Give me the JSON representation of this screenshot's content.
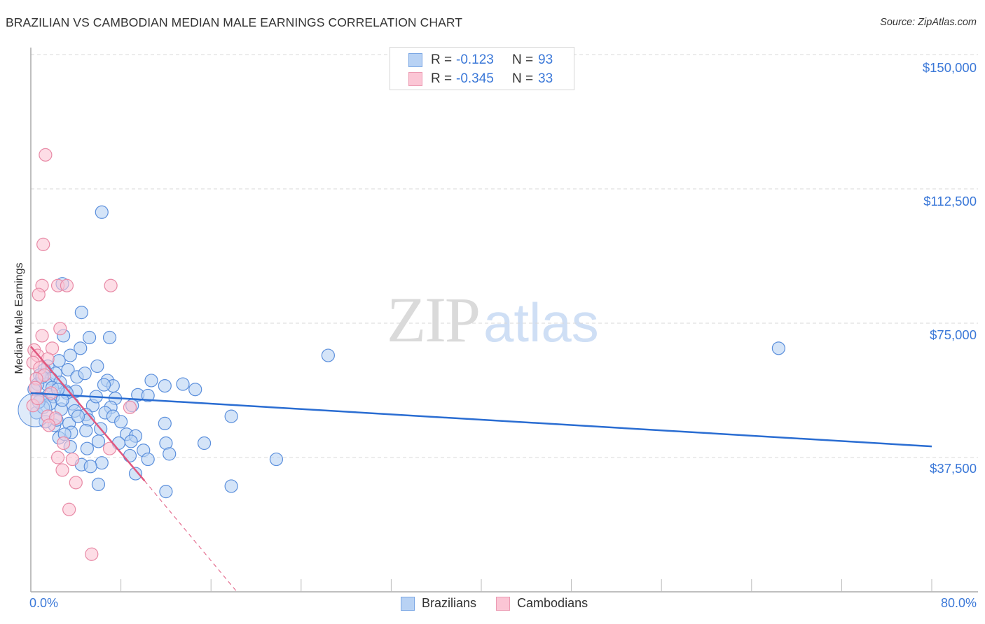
{
  "header": {
    "title": "BRAZILIAN VS CAMBODIAN MEDIAN MALE EARNINGS CORRELATION CHART",
    "source": "Source: ZipAtlas.com"
  },
  "colors": {
    "brazilians_fill": "#b8d2f4",
    "brazilians_stroke": "#5b8fdc",
    "brazilians_line": "#2a6dd2",
    "cambodians_fill": "#fbc6d5",
    "cambodians_stroke": "#e88aa6",
    "cambodians_line": "#e0587f",
    "axis_text": "#3b78d8",
    "grid": "#d9d9d9"
  },
  "legend": {
    "rows": [
      {
        "series": "Brazilians",
        "r_label": "R =",
        "r_value": "-0.123",
        "n_label": "N =",
        "n_value": "93"
      },
      {
        "series": "Cambodians",
        "r_label": "R =",
        "r_value": "-0.345",
        "n_label": "N =",
        "n_value": "33"
      }
    ]
  },
  "bottom_legend": {
    "items": [
      {
        "label": "Brazilians"
      },
      {
        "label": "Cambodians"
      }
    ]
  },
  "axes": {
    "ylabel": "Median Male Earnings",
    "yticks": [
      "$150,000",
      "$112,500",
      "$75,000",
      "$37,500"
    ],
    "xtick_left": "0.0%",
    "xtick_right": "80.0%"
  },
  "watermark": {
    "zip": "ZIP",
    "atlas": "atlas"
  },
  "chart_data": {
    "type": "scatter",
    "title": "BRAZILIAN VS CAMBODIAN MEDIAN MALE EARNINGS CORRELATION CHART",
    "xlabel": "",
    "ylabel": "Median Male Earnings",
    "xlim": [
      0,
      80
    ],
    "ylim": [
      0,
      155000
    ],
    "x_unit": "%",
    "yticks": [
      37500,
      75000,
      112500,
      150000
    ],
    "xtick_labels": [
      "0.0%",
      "80.0%"
    ],
    "grid": "horizontal dashed",
    "legend_position": "top-center and bottom-center",
    "series": [
      {
        "name": "Brazilians",
        "r": -0.123,
        "n": 93,
        "trend": {
          "x": [
            0,
            80
          ],
          "y": [
            55500,
            40600
          ]
        },
        "points": [
          [
            6.3,
            106000
          ],
          [
            2.8,
            86000
          ],
          [
            4.5,
            78000
          ],
          [
            5.2,
            71000
          ],
          [
            7.0,
            71000
          ],
          [
            4.4,
            68000
          ],
          [
            2.9,
            71500
          ],
          [
            2.5,
            64500
          ],
          [
            3.5,
            66000
          ],
          [
            5.9,
            63000
          ],
          [
            1.5,
            63000
          ],
          [
            1.2,
            62000
          ],
          [
            2.2,
            61000
          ],
          [
            3.3,
            62000
          ],
          [
            4.1,
            60000
          ],
          [
            4.8,
            61000
          ],
          [
            1.8,
            59500
          ],
          [
            0.8,
            60500
          ],
          [
            1.4,
            58000
          ],
          [
            2.6,
            58500
          ],
          [
            3.1,
            56000
          ],
          [
            1.9,
            57000
          ],
          [
            0.6,
            58000
          ],
          [
            6.8,
            59000
          ],
          [
            7.3,
            57500
          ],
          [
            6.5,
            57800
          ],
          [
            10.7,
            59000
          ],
          [
            11.9,
            57500
          ],
          [
            13.5,
            58000
          ],
          [
            14.6,
            56500
          ],
          [
            9.5,
            55000
          ],
          [
            10.4,
            54800
          ],
          [
            4.0,
            56000
          ],
          [
            3.2,
            55500
          ],
          [
            2.0,
            54500
          ],
          [
            1.6,
            55000
          ],
          [
            0.9,
            54000
          ],
          [
            7.5,
            54000
          ],
          [
            5.5,
            52000
          ],
          [
            7.1,
            51500
          ],
          [
            3.7,
            52500
          ],
          [
            2.7,
            51000
          ],
          [
            4.9,
            49500
          ],
          [
            6.6,
            50000
          ],
          [
            7.3,
            49000
          ],
          [
            5.1,
            48000
          ],
          [
            3.4,
            47000
          ],
          [
            2.1,
            46500
          ],
          [
            11.9,
            47000
          ],
          [
            17.8,
            49000
          ],
          [
            4.9,
            45000
          ],
          [
            3.6,
            44500
          ],
          [
            8.5,
            44000
          ],
          [
            9.3,
            43500
          ],
          [
            2.5,
            43000
          ],
          [
            6.0,
            42000
          ],
          [
            7.8,
            41500
          ],
          [
            12.0,
            41500
          ],
          [
            15.4,
            41500
          ],
          [
            8.9,
            42000
          ],
          [
            3.5,
            40500
          ],
          [
            5.0,
            40000
          ],
          [
            10.0,
            39500
          ],
          [
            12.3,
            38500
          ],
          [
            8.8,
            38000
          ],
          [
            10.4,
            37000
          ],
          [
            6.3,
            36000
          ],
          [
            4.5,
            35500
          ],
          [
            5.3,
            35000
          ],
          [
            9.3,
            33000
          ],
          [
            6.0,
            30000
          ],
          [
            12.0,
            28000
          ],
          [
            17.8,
            29500
          ],
          [
            21.8,
            37000
          ],
          [
            26.4,
            66000
          ],
          [
            66.4,
            68000
          ],
          [
            1.0,
            60000
          ],
          [
            0.5,
            50000
          ],
          [
            1.7,
            52500
          ],
          [
            2.3,
            48000
          ],
          [
            3.9,
            50500
          ],
          [
            6.2,
            45500
          ],
          [
            8.0,
            47500
          ],
          [
            9.0,
            52000
          ],
          [
            0.3,
            56500
          ],
          [
            1.1,
            51500
          ],
          [
            2.8,
            53500
          ],
          [
            4.2,
            49000
          ],
          [
            5.8,
            54500
          ],
          [
            1.3,
            47500
          ],
          [
            0.7,
            53000
          ],
          [
            2.4,
            56500
          ],
          [
            3.0,
            44000
          ]
        ]
      },
      {
        "name": "Cambodians",
        "r": -0.345,
        "n": 33,
        "trend_solid": {
          "x": [
            0,
            10.1
          ],
          "y": [
            68500,
            31000
          ]
        },
        "trend_dashed": {
          "x": [
            10.1,
            18.3
          ],
          "y": [
            31000,
            0
          ]
        },
        "points": [
          [
            1.3,
            122000
          ],
          [
            1.1,
            97000
          ],
          [
            1.0,
            85500
          ],
          [
            0.7,
            83000
          ],
          [
            2.4,
            85500
          ],
          [
            3.2,
            85500
          ],
          [
            7.1,
            85500
          ],
          [
            2.6,
            73500
          ],
          [
            1.0,
            71500
          ],
          [
            1.9,
            68000
          ],
          [
            0.3,
            67500
          ],
          [
            0.6,
            66000
          ],
          [
            1.5,
            65000
          ],
          [
            0.2,
            64000
          ],
          [
            0.8,
            62500
          ],
          [
            1.2,
            60500
          ],
          [
            0.5,
            59500
          ],
          [
            0.4,
            57000
          ],
          [
            1.8,
            55500
          ],
          [
            0.2,
            52000
          ],
          [
            8.8,
            51500
          ],
          [
            1.5,
            49000
          ],
          [
            2.2,
            48500
          ],
          [
            1.6,
            46500
          ],
          [
            7.0,
            40000
          ],
          [
            2.9,
            41500
          ],
          [
            3.7,
            37000
          ],
          [
            2.4,
            37500
          ],
          [
            2.8,
            34000
          ],
          [
            4.0,
            30500
          ],
          [
            3.4,
            23000
          ],
          [
            5.4,
            10500
          ],
          [
            0.6,
            54000
          ]
        ]
      }
    ]
  }
}
